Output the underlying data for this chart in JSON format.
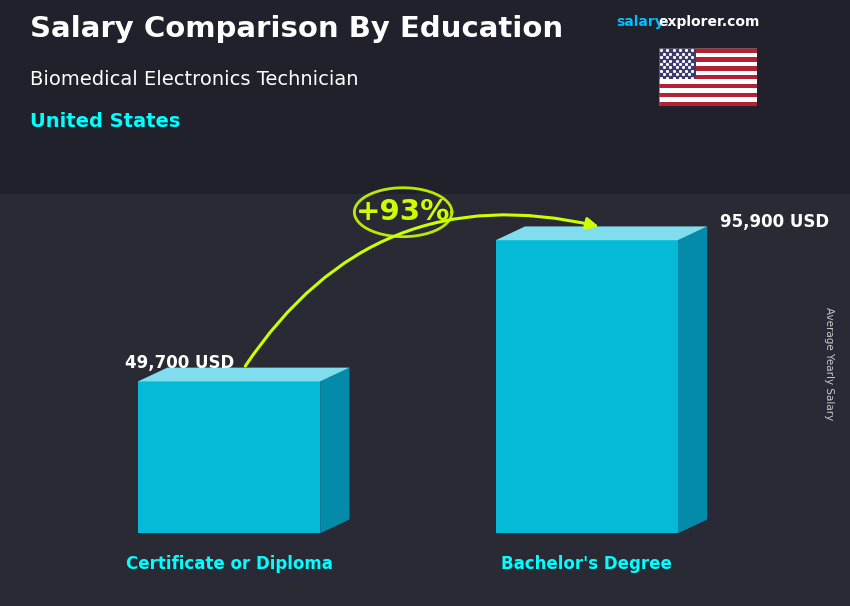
{
  "title": "Salary Comparison By Education",
  "subtitle": "Biomedical Electronics Technician",
  "country": "United States",
  "ylabel": "Average Yearly Salary",
  "watermark_salary": "salary",
  "watermark_rest": "explorer.com",
  "categories": [
    "Certificate or Diploma",
    "Bachelor's Degree"
  ],
  "values": [
    49700,
    95900
  ],
  "value_labels": [
    "49,700 USD",
    "95,900 USD"
  ],
  "pct_change": "+93%",
  "bar_color_face": "#00CFEF",
  "bar_color_side": "#0099BB",
  "bar_color_top": "#88EEFF",
  "bg_color": "#2e2e3a",
  "title_color": "#FFFFFF",
  "subtitle_color": "#FFFFFF",
  "country_color": "#00FFFF",
  "category_color": "#00FFFF",
  "value_color": "#FFFFFF",
  "pct_color": "#CCFF00",
  "arrow_color": "#CCFF00",
  "watermark_salary_color": "#00BFFF",
  "watermark_rest_color": "#FFFFFF",
  "bar_width": 0.28,
  "ylim": [
    0,
    115000
  ],
  "positions": [
    0.3,
    0.85
  ]
}
